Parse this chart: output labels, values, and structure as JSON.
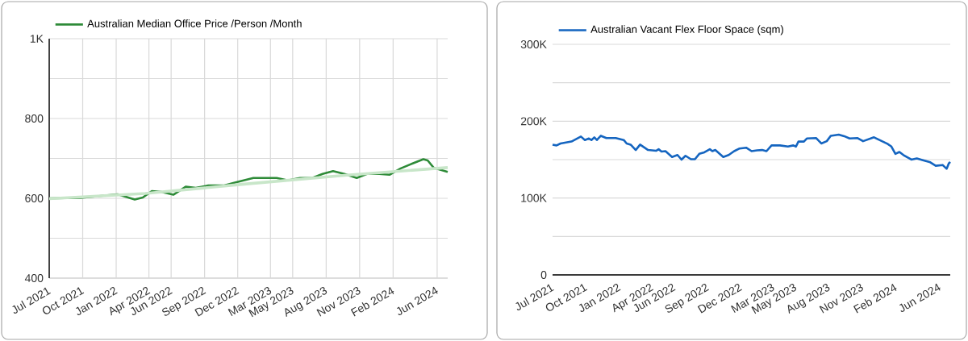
{
  "chart_data": [
    {
      "type": "line",
      "xlim": [
        "2021-07-01",
        "2024-06-30"
      ],
      "xticks": [
        {
          "value": "2021-07",
          "label": "Jul 2021"
        },
        {
          "value": "2021-10",
          "label": "Oct 2021"
        },
        {
          "value": "2022-01",
          "label": "Jan 2022"
        },
        {
          "value": "2022-04",
          "label": "Apr 2022"
        },
        {
          "value": "2022-06",
          "label": "Jun 2022"
        },
        {
          "value": "2022-09",
          "label": "Sep 2022"
        },
        {
          "value": "2022-12",
          "label": "Dec 2022"
        },
        {
          "value": "2023-03",
          "label": "Mar 2023"
        },
        {
          "value": "2023-05",
          "label": "May 2023"
        },
        {
          "value": "2023-08",
          "label": "Aug 2023"
        },
        {
          "value": "2023-11",
          "label": "Nov 2023"
        },
        {
          "value": "2024-02",
          "label": "Feb 2024"
        },
        {
          "value": "2024-06",
          "label": "Jun 2024"
        }
      ],
      "ylim": [
        400,
        1000
      ],
      "yticks": [
        400,
        {
          "value": 500,
          "label": null
        },
        600,
        {
          "value": 700,
          "label": null
        },
        800,
        {
          "value": 900,
          "label": null
        },
        {
          "value": 1000,
          "label": "1K"
        }
      ],
      "grid": true,
      "legend": "top left",
      "series": [
        {
          "name": "Australian Median Office Price /Person /Month",
          "color": "#2e8b38",
          "x": [
            "2021-07-03",
            "2021-09-25",
            "2022-01-05",
            "2022-02-21",
            "2022-03-15",
            "2022-04-09",
            "2022-05-05",
            "2022-06-07",
            "2022-07-11",
            "2022-08-08",
            "2022-09-11",
            "2022-10-23",
            "2022-11-21",
            "2022-12-13",
            "2023-01-13",
            "2023-03-18",
            "2023-04-18",
            "2023-05-21",
            "2023-06-24",
            "2023-07-22",
            "2023-08-20",
            "2023-09-20",
            "2023-10-24",
            "2023-11-21",
            "2023-12-25",
            "2024-01-22",
            "2024-02-22",
            "2024-03-27",
            "2024-04-24",
            "2024-05-06",
            "2024-05-23",
            "2024-06-30"
          ],
          "values": [
            600,
            601,
            610,
            597,
            602,
            618,
            616,
            609,
            629,
            626,
            632,
            632,
            639,
            644,
            651,
            651,
            645,
            651,
            651,
            661,
            668,
            661,
            651,
            661,
            661,
            659,
            675,
            688,
            698,
            695,
            676,
            666
          ]
        },
        {
          "color": "#c8e6c9",
          "x": [
            "2021-07-01",
            "2022-03-22",
            "2022-12-13",
            "2023-09-27",
            "2024-06-30"
          ],
          "values": [
            599,
            612,
            635,
            658,
            677
          ]
        }
      ]
    },
    {
      "type": "line",
      "xlim": [
        "2021-07-01",
        "2024-06-30"
      ],
      "xticks": [
        {
          "value": "2021-07",
          "label": "Jul 2021"
        },
        {
          "value": "2021-10",
          "label": "Oct 2021"
        },
        {
          "value": "2022-01",
          "label": "Jan 2022"
        },
        {
          "value": "2022-04",
          "label": "Apr 2022"
        },
        {
          "value": "2022-06",
          "label": "Jun 2022"
        },
        {
          "value": "2022-09",
          "label": "Sep 2022"
        },
        {
          "value": "2022-12",
          "label": "Dec 2022"
        },
        {
          "value": "2023-03",
          "label": "Mar 2023"
        },
        {
          "value": "2023-05",
          "label": "May 2023"
        },
        {
          "value": "2023-08",
          "label": "Aug 2023"
        },
        {
          "value": "2023-11",
          "label": "Nov 2023"
        },
        {
          "value": "2024-02",
          "label": "Feb 2024"
        },
        {
          "value": "2024-06",
          "label": "Jun 2024"
        }
      ],
      "ylim": [
        0,
        300000
      ],
      "yticks": [
        0,
        {
          "value": 50000,
          "label": null
        },
        {
          "value": 100000,
          "label": "100K"
        },
        {
          "value": 150000,
          "label": null
        },
        {
          "value": 200000,
          "label": "200K"
        },
        {
          "value": 250000,
          "label": null
        },
        {
          "value": 300000,
          "label": "300K"
        }
      ],
      "grid": "y",
      "legend": "top left",
      "series": [
        {
          "name": "Australian Vacant Flex Floor Space (sqm)",
          "color": "#1565c0",
          "x": [
            "2021-07-01",
            "2021-07-12",
            "2021-07-23",
            "2021-08-22",
            "2021-09-17",
            "2021-09-28",
            "2021-10-09",
            "2021-10-16",
            "2021-10-24",
            "2021-10-31",
            "2021-11-11",
            "2021-11-26",
            "2021-12-22",
            "2022-01-13",
            "2022-01-21",
            "2022-02-01",
            "2022-02-15",
            "2022-02-27",
            "2022-03-21",
            "2022-04-12",
            "2022-04-19",
            "2022-04-27",
            "2022-05-08",
            "2022-05-26",
            "2022-06-10",
            "2022-06-21",
            "2022-07-02",
            "2022-07-17",
            "2022-07-28",
            "2022-08-09",
            "2022-08-23",
            "2022-09-07",
            "2022-09-14",
            "2022-09-22",
            "2022-10-14",
            "2022-10-29",
            "2022-11-13",
            "2022-11-28",
            "2022-12-16",
            "2022-12-31",
            "2023-01-15",
            "2023-01-29",
            "2023-02-10",
            "2023-02-24",
            "2023-03-19",
            "2023-04-10",
            "2023-04-25",
            "2023-05-02",
            "2023-05-09",
            "2023-05-24",
            "2023-06-01",
            "2023-06-27",
            "2023-07-11",
            "2023-07-26",
            "2023-08-06",
            "2023-08-28",
            "2023-09-12",
            "2023-09-27",
            "2023-10-19",
            "2023-11-03",
            "2023-12-03",
            "2023-12-18",
            "2024-01-09",
            "2024-01-20",
            "2024-01-31",
            "2024-02-11",
            "2024-02-22",
            "2024-03-15",
            "2024-03-30",
            "2024-04-14",
            "2024-05-06",
            "2024-05-21",
            "2024-06-09",
            "2024-06-20",
            "2024-06-26",
            "2024-06-30"
          ],
          "values": [
            169500,
            168500,
            171000,
            173500,
            180000,
            175500,
            177500,
            175500,
            179000,
            175500,
            181000,
            178000,
            178000,
            175500,
            171000,
            169500,
            162500,
            169500,
            162500,
            161500,
            163500,
            160500,
            161000,
            153500,
            156000,
            150000,
            155000,
            150500,
            150500,
            157500,
            159500,
            163500,
            161000,
            162500,
            153500,
            156000,
            161000,
            164500,
            165500,
            161000,
            162000,
            162500,
            161000,
            168500,
            168500,
            167000,
            168500,
            167000,
            173500,
            173500,
            177500,
            178000,
            171000,
            174000,
            181000,
            182500,
            180500,
            177500,
            178000,
            174000,
            179000,
            175500,
            170500,
            167000,
            157500,
            160000,
            156000,
            150000,
            151500,
            149500,
            146500,
            142000,
            143000,
            138000,
            145000,
            147000
          ]
        }
      ]
    }
  ]
}
